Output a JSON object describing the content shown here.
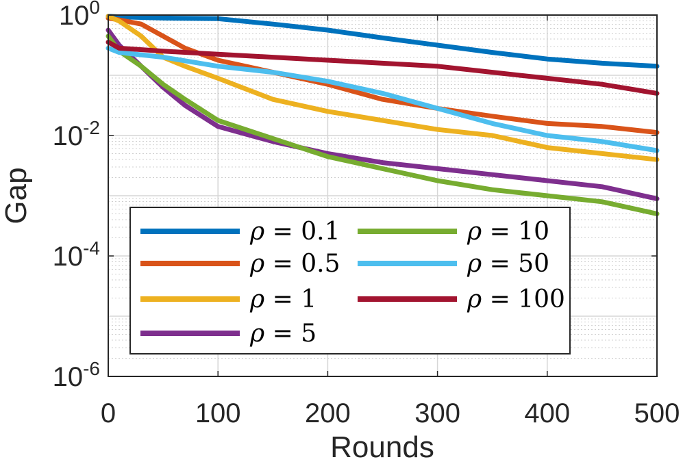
{
  "chart_data": {
    "type": "line",
    "title": "",
    "xlabel": "Rounds",
    "ylabel": "Gap",
    "xlim": [
      0,
      500
    ],
    "ylim_log10": [
      -6,
      0
    ],
    "yscale": "log",
    "grid": true,
    "legend_position": "bottom-left",
    "legend_columns": 2,
    "x_ticks": [
      {
        "value": 0,
        "label": "0"
      },
      {
        "value": 100,
        "label": "100"
      },
      {
        "value": 200,
        "label": "200"
      },
      {
        "value": 300,
        "label": "300"
      },
      {
        "value": 400,
        "label": "400"
      },
      {
        "value": 500,
        "label": "500"
      }
    ],
    "y_ticks": [
      {
        "exp": 0,
        "base": "10",
        "power": "0"
      },
      {
        "exp": -2,
        "base": "10",
        "power": "-2"
      },
      {
        "exp": -4,
        "base": "10",
        "power": "-4"
      },
      {
        "exp": -6,
        "base": "10",
        "power": "-6"
      }
    ],
    "series": [
      {
        "name": "ρ = 0.1",
        "symbol": "ρ",
        "eq": " = ",
        "value_label": "0.1",
        "color": "#0072BD",
        "x": [
          0,
          10,
          50,
          100,
          150,
          200,
          250,
          300,
          350,
          400,
          450,
          500
        ],
        "log10": [
          -0.02,
          -0.03,
          -0.05,
          -0.06,
          -0.15,
          -0.25,
          -0.38,
          -0.5,
          -0.62,
          -0.73,
          -0.8,
          -0.85
        ]
      },
      {
        "name": "ρ = 0.5",
        "symbol": "ρ",
        "eq": " = ",
        "value_label": "0.5",
        "color": "#D95319",
        "x": [
          0,
          10,
          30,
          50,
          70,
          100,
          150,
          200,
          250,
          300,
          350,
          400,
          450,
          500
        ],
        "log10": [
          -0.05,
          -0.08,
          -0.15,
          -0.35,
          -0.55,
          -0.75,
          -0.95,
          -1.15,
          -1.4,
          -1.55,
          -1.68,
          -1.8,
          -1.85,
          -1.95
        ]
      },
      {
        "name": "ρ = 1",
        "symbol": "ρ",
        "eq": " = ",
        "value_label": "1",
        "color": "#EDB120",
        "x": [
          0,
          10,
          30,
          50,
          70,
          100,
          150,
          200,
          250,
          300,
          350,
          400,
          450,
          500
        ],
        "log10": [
          -0.02,
          -0.1,
          -0.35,
          -0.7,
          -0.85,
          -1.05,
          -1.4,
          -1.6,
          -1.75,
          -1.9,
          -2.0,
          -2.2,
          -2.3,
          -2.4
        ]
      },
      {
        "name": "ρ = 5",
        "symbol": "ρ",
        "eq": " = ",
        "value_label": "5",
        "color": "#7E2F8E",
        "x": [
          0,
          10,
          30,
          50,
          70,
          100,
          150,
          200,
          250,
          300,
          350,
          400,
          450,
          500
        ],
        "log10": [
          -0.25,
          -0.5,
          -0.85,
          -1.2,
          -1.5,
          -1.85,
          -2.1,
          -2.3,
          -2.45,
          -2.55,
          -2.65,
          -2.75,
          -2.85,
          -3.05
        ]
      },
      {
        "name": "ρ = 10",
        "symbol": "ρ",
        "eq": " = ",
        "value_label": "10",
        "color": "#77AC30",
        "x": [
          0,
          10,
          30,
          50,
          70,
          100,
          150,
          200,
          250,
          300,
          350,
          400,
          450,
          500
        ],
        "log10": [
          -0.35,
          -0.6,
          -0.85,
          -1.15,
          -1.4,
          -1.75,
          -2.05,
          -2.35,
          -2.55,
          -2.75,
          -2.9,
          -3.0,
          -3.1,
          -3.3
        ]
      },
      {
        "name": "ρ = 50",
        "symbol": "ρ",
        "eq": " = ",
        "value_label": "50",
        "color": "#4DBEEE",
        "x": [
          0,
          10,
          50,
          100,
          150,
          200,
          250,
          300,
          350,
          400,
          450,
          500
        ],
        "log10": [
          -0.55,
          -0.62,
          -0.7,
          -0.85,
          -0.95,
          -1.1,
          -1.3,
          -1.55,
          -1.8,
          -2.0,
          -2.1,
          -2.25
        ]
      },
      {
        "name": "ρ = 100",
        "symbol": "ρ",
        "eq": " = ",
        "value_label": "100",
        "color": "#A2142F",
        "x": [
          0,
          10,
          50,
          100,
          150,
          200,
          250,
          300,
          350,
          400,
          450,
          500
        ],
        "log10": [
          -0.45,
          -0.55,
          -0.6,
          -0.65,
          -0.7,
          -0.75,
          -0.8,
          -0.85,
          -0.95,
          -1.05,
          -1.15,
          -1.3
        ]
      }
    ]
  }
}
